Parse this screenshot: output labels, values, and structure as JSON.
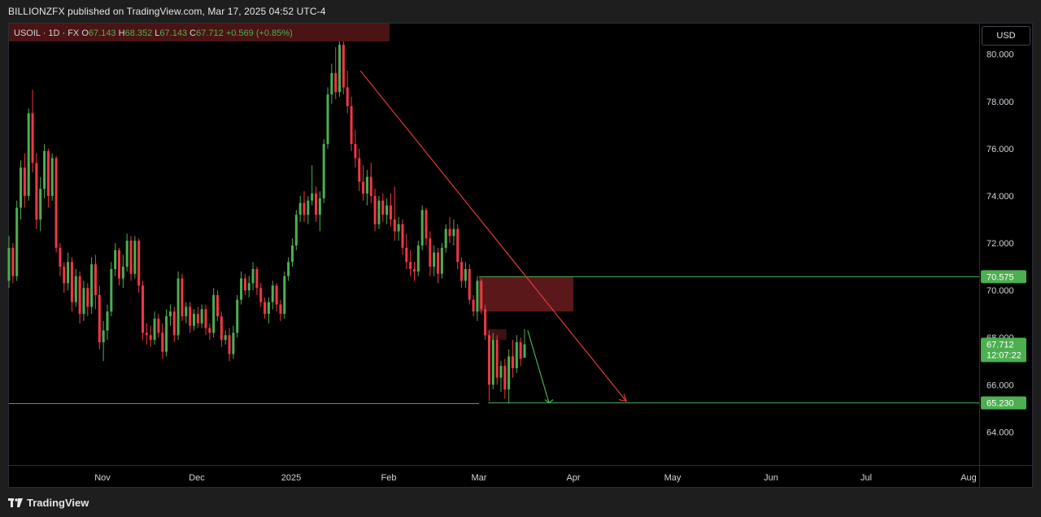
{
  "publisher": "BILLIONZFX published on TradingView.com, Mar 17, 2025 04:52 UTC-4",
  "brand": "TradingView",
  "currency_button": "USD",
  "legend": {
    "symbol": "USOIL · 1D · FX",
    "open_label": "O",
    "open": "67.143",
    "high_label": "H",
    "high": "68.352",
    "low_label": "L",
    "low": "67.143",
    "close_label": "C",
    "close": "67.712",
    "change": "+0.569 (+0.85%)"
  },
  "price_tags": {
    "resistance": "70.575",
    "current_price": "67.712",
    "countdown": "12:07:22",
    "support": "65.230"
  },
  "colors": {
    "bull": "#26a69a",
    "bull_candle": "#4caf50",
    "bear": "#f23645",
    "support_line": "#4caf50",
    "prev_low_line": "#e0584d",
    "trend_arrow": "#e53935",
    "zone": "#6b1c20"
  },
  "chart_data": {
    "type": "candlestick",
    "symbol": "USOIL",
    "interval": "1D",
    "y_ticks": [
      "80.000",
      "78.000",
      "76.000",
      "74.000",
      "72.000",
      "70.000",
      "68.000",
      "66.000",
      "64.000"
    ],
    "y_tick_values": [
      80,
      78,
      76,
      74,
      72,
      70,
      68,
      66,
      64
    ],
    "x_ticks": [
      "Nov",
      "Dec",
      "2025",
      "Feb",
      "Mar",
      "Apr",
      "May",
      "Jun",
      "Jul",
      "Aug"
    ],
    "ylim": [
      62.6,
      81.3
    ],
    "levels": {
      "resistance": 70.575,
      "support": 65.23,
      "previous_low": 65.2,
      "current": 67.712
    },
    "zones": [
      {
        "name": "supply-zone",
        "from": "2025-03-01",
        "to": "2025-04-01",
        "low": 69.1,
        "high": 70.575
      },
      {
        "name": "small-zone",
        "from": "2025-03-04",
        "to": "2025-03-10",
        "low": 67.9,
        "high": 68.35
      }
    ],
    "trend_arrow": {
      "from": {
        "date": "2025-01-23",
        "price": 79.3
      },
      "to": {
        "date": "2025-04-17",
        "price": 65.3
      }
    },
    "projection_arrow": {
      "from": {
        "date": "2025-03-17",
        "price": 68.3
      },
      "to": {
        "date": "2025-03-24",
        "price": 65.23
      }
    },
    "candles": [
      [
        70.4,
        72.3,
        70.1,
        71.8
      ],
      [
        71.8,
        72.0,
        70.3,
        70.6
      ],
      [
        70.6,
        73.8,
        70.4,
        73.5
      ],
      [
        73.5,
        75.5,
        73.0,
        75.2
      ],
      [
        75.2,
        75.8,
        73.5,
        74.0
      ],
      [
        74.0,
        77.7,
        73.8,
        77.5
      ],
      [
        77.5,
        78.5,
        75.0,
        75.4
      ],
      [
        75.4,
        75.8,
        72.6,
        73.0
      ],
      [
        73.0,
        74.8,
        72.5,
        74.3
      ],
      [
        74.3,
        76.2,
        73.9,
        75.9
      ],
      [
        75.9,
        76.0,
        73.5,
        74.0
      ],
      [
        74.0,
        75.8,
        73.8,
        75.6
      ],
      [
        75.6,
        75.7,
        71.6,
        71.8
      ],
      [
        71.8,
        72.0,
        70.6,
        71.0
      ],
      [
        71.0,
        71.2,
        69.9,
        70.3
      ],
      [
        70.3,
        71.6,
        70.0,
        71.2
      ],
      [
        71.2,
        71.4,
        69.1,
        69.5
      ],
      [
        69.5,
        70.9,
        69.3,
        70.6
      ],
      [
        70.6,
        70.8,
        68.6,
        69.0
      ],
      [
        69.0,
        70.4,
        68.7,
        70.1
      ],
      [
        70.1,
        70.3,
        68.9,
        69.3
      ],
      [
        69.3,
        71.4,
        69.0,
        71.1
      ],
      [
        71.1,
        71.5,
        69.2,
        69.8
      ],
      [
        69.8,
        70.2,
        67.5,
        67.8
      ],
      [
        67.8,
        68.7,
        67.0,
        68.3
      ],
      [
        68.3,
        69.4,
        67.9,
        69.1
      ],
      [
        69.1,
        71.2,
        68.9,
        70.9
      ],
      [
        70.9,
        72.0,
        70.6,
        71.7
      ],
      [
        71.7,
        71.8,
        70.2,
        70.5
      ],
      [
        70.5,
        71.5,
        70.1,
        71.0
      ],
      [
        71.0,
        72.4,
        70.8,
        72.1
      ],
      [
        72.1,
        72.3,
        70.4,
        70.7
      ],
      [
        70.7,
        72.3,
        70.5,
        72.1
      ],
      [
        72.1,
        72.2,
        69.9,
        70.2
      ],
      [
        70.2,
        70.4,
        67.9,
        68.2
      ],
      [
        68.2,
        68.6,
        67.7,
        68.1
      ],
      [
        68.1,
        68.5,
        67.6,
        67.9
      ],
      [
        67.9,
        69.1,
        67.7,
        68.8
      ],
      [
        68.8,
        69.0,
        68.0,
        68.2
      ],
      [
        68.2,
        68.6,
        67.1,
        67.4
      ],
      [
        67.4,
        69.2,
        67.2,
        68.9
      ],
      [
        68.9,
        69.4,
        68.5,
        69.1
      ],
      [
        69.1,
        69.3,
        67.8,
        68.1
      ],
      [
        68.1,
        70.8,
        67.9,
        70.5
      ],
      [
        70.5,
        70.7,
        68.7,
        68.9
      ],
      [
        68.9,
        69.5,
        68.6,
        69.3
      ],
      [
        69.3,
        69.5,
        68.2,
        68.5
      ],
      [
        68.5,
        69.2,
        68.3,
        69.0
      ],
      [
        69.0,
        69.3,
        68.4,
        68.6
      ],
      [
        68.6,
        69.4,
        68.4,
        69.2
      ],
      [
        69.2,
        69.4,
        68.1,
        68.4
      ],
      [
        68.4,
        68.6,
        67.9,
        68.2
      ],
      [
        68.2,
        70.1,
        68.0,
        69.8
      ],
      [
        69.8,
        70.0,
        68.7,
        68.9
      ],
      [
        68.9,
        69.1,
        67.6,
        67.9
      ],
      [
        67.9,
        68.3,
        67.7,
        68.1
      ],
      [
        68.1,
        68.4,
        67.0,
        67.3
      ],
      [
        67.3,
        68.5,
        67.1,
        68.2
      ],
      [
        68.2,
        69.8,
        68.0,
        69.6
      ],
      [
        69.6,
        70.8,
        69.4,
        70.5
      ],
      [
        70.5,
        70.7,
        69.8,
        70.0
      ],
      [
        70.0,
        70.6,
        69.7,
        70.3
      ],
      [
        70.3,
        71.2,
        70.0,
        70.9
      ],
      [
        70.9,
        71.0,
        69.8,
        70.1
      ],
      [
        70.1,
        70.3,
        69.3,
        69.5
      ],
      [
        69.5,
        69.7,
        68.8,
        69.0
      ],
      [
        69.0,
        69.7,
        68.6,
        69.5
      ],
      [
        69.5,
        70.4,
        69.2,
        70.2
      ],
      [
        70.2,
        70.3,
        69.1,
        69.4
      ],
      [
        69.4,
        69.6,
        68.7,
        69.0
      ],
      [
        69.0,
        70.8,
        68.8,
        70.6
      ],
      [
        70.6,
        71.4,
        70.4,
        71.2
      ],
      [
        71.2,
        72.2,
        71.0,
        71.9
      ],
      [
        71.9,
        73.4,
        71.7,
        73.2
      ],
      [
        73.2,
        74.0,
        72.9,
        73.7
      ],
      [
        73.7,
        74.2,
        72.9,
        73.2
      ],
      [
        73.2,
        74.0,
        72.8,
        73.8
      ],
      [
        73.8,
        75.3,
        73.6,
        74.1
      ],
      [
        74.1,
        74.4,
        72.9,
        73.2
      ],
      [
        73.2,
        74.2,
        72.5,
        73.9
      ],
      [
        73.9,
        76.4,
        73.7,
        76.2
      ],
      [
        76.2,
        78.6,
        76.0,
        78.3
      ],
      [
        78.3,
        79.6,
        77.9,
        79.2
      ],
      [
        79.2,
        80.3,
        78.1,
        78.4
      ],
      [
        78.4,
        80.9,
        78.2,
        80.4
      ],
      [
        80.4,
        80.8,
        78.3,
        78.6
      ],
      [
        78.6,
        79.3,
        77.5,
        77.8
      ],
      [
        77.8,
        78.2,
        75.9,
        76.2
      ],
      [
        76.2,
        76.8,
        75.2,
        75.6
      ],
      [
        75.6,
        76.0,
        74.2,
        74.6
      ],
      [
        74.6,
        75.3,
        73.8,
        74.1
      ],
      [
        74.1,
        75.1,
        73.6,
        74.8
      ],
      [
        74.8,
        75.4,
        73.7,
        74.0
      ],
      [
        74.0,
        74.3,
        72.5,
        72.8
      ],
      [
        72.8,
        74.0,
        72.6,
        73.8
      ],
      [
        73.8,
        74.1,
        72.9,
        73.2
      ],
      [
        73.2,
        73.9,
        72.8,
        73.6
      ],
      [
        73.6,
        74.1,
        72.7,
        73.0
      ],
      [
        73.0,
        74.4,
        72.1,
        72.5
      ],
      [
        72.5,
        73.1,
        72.1,
        72.8
      ],
      [
        72.8,
        73.0,
        71.5,
        71.8
      ],
      [
        71.8,
        72.4,
        70.9,
        71.2
      ],
      [
        71.2,
        71.7,
        70.6,
        70.9
      ],
      [
        70.9,
        71.2,
        70.4,
        70.8
      ],
      [
        70.8,
        72.1,
        70.6,
        71.9
      ],
      [
        71.9,
        73.6,
        71.7,
        73.4
      ],
      [
        73.4,
        73.5,
        71.9,
        72.2
      ],
      [
        72.2,
        72.5,
        70.6,
        71.0
      ],
      [
        71.0,
        71.9,
        70.6,
        71.6
      ],
      [
        71.6,
        71.8,
        70.3,
        70.7
      ],
      [
        70.7,
        72.0,
        70.5,
        71.8
      ],
      [
        71.8,
        72.8,
        71.6,
        72.6
      ],
      [
        72.6,
        73.1,
        72.0,
        72.3
      ],
      [
        72.3,
        73.0,
        71.9,
        72.6
      ],
      [
        72.6,
        72.8,
        70.9,
        71.2
      ],
      [
        71.2,
        71.4,
        70.1,
        70.4
      ],
      [
        70.4,
        71.2,
        70.1,
        70.9
      ],
      [
        70.9,
        71.1,
        69.4,
        69.6
      ],
      [
        69.6,
        69.8,
        68.9,
        69.1
      ],
      [
        69.1,
        70.6,
        68.7,
        70.4
      ],
      [
        70.4,
        70.5,
        69.0,
        69.2
      ],
      [
        69.2,
        69.4,
        67.9,
        68.1
      ],
      [
        68.1,
        68.3,
        65.3,
        66.0
      ],
      [
        66.0,
        68.2,
        65.8,
        67.9
      ],
      [
        67.9,
        68.1,
        66.0,
        66.3
      ],
      [
        66.3,
        67.0,
        65.7,
        66.8
      ],
      [
        66.8,
        67.1,
        65.4,
        65.8
      ],
      [
        65.8,
        67.5,
        65.2,
        67.2
      ],
      [
        67.2,
        67.9,
        66.3,
        66.7
      ],
      [
        66.7,
        68.1,
        66.5,
        67.8
      ],
      [
        67.8,
        68.0,
        66.8,
        67.1
      ],
      [
        67.143,
        68.352,
        67.143,
        67.712
      ]
    ]
  }
}
